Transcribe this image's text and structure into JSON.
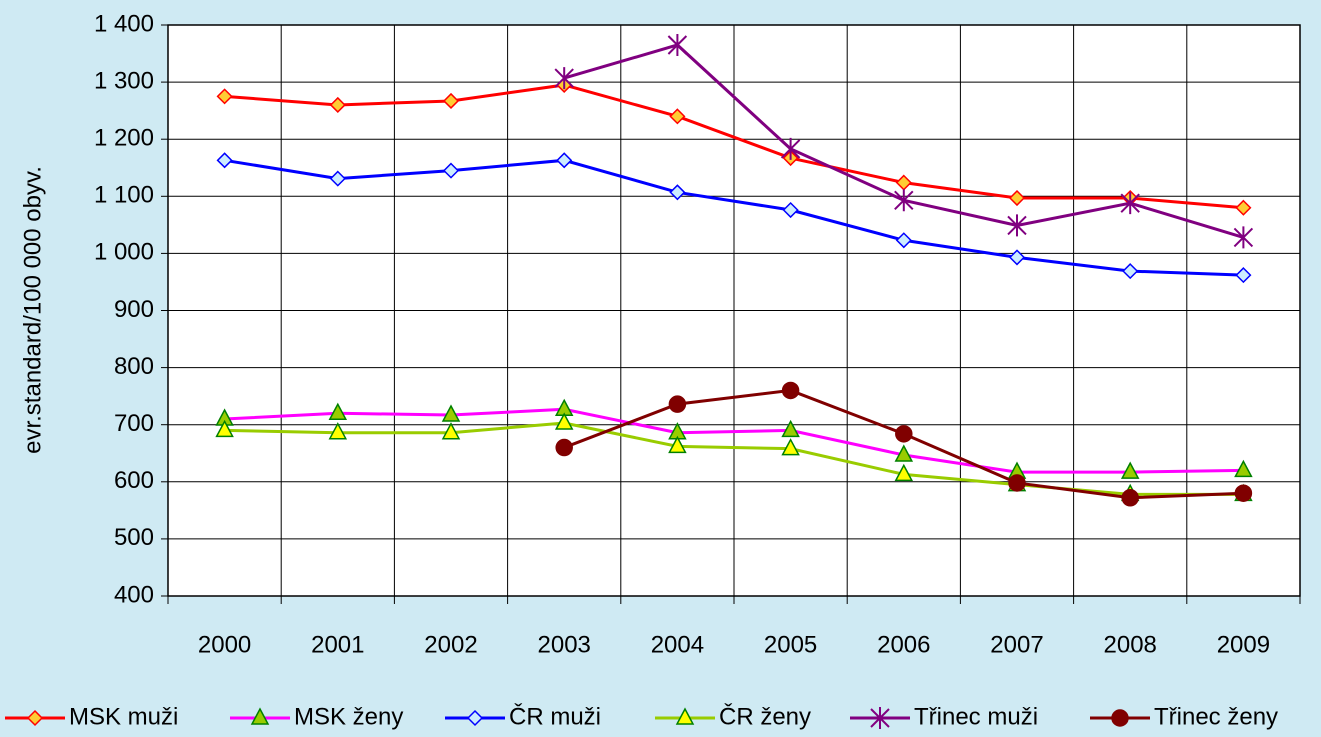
{
  "chart_data": {
    "type": "line",
    "y_label": "evr.standard/100 000 obyv.",
    "categories": [
      "2000",
      "2001",
      "2002",
      "2003",
      "2004",
      "2005",
      "2006",
      "2007",
      "2008",
      "2009"
    ],
    "ylim": [
      400,
      1400
    ],
    "yticks": [
      400,
      500,
      600,
      700,
      800,
      900,
      {
        "value": 1000,
        "label": "1 000"
      },
      {
        "value": 1100,
        "label": "1 100"
      },
      {
        "value": 1200,
        "label": "1 200"
      },
      {
        "value": 1300,
        "label": "1 300"
      },
      {
        "value": 1400,
        "label": "1 400"
      }
    ],
    "grid": true,
    "legend": "bottom",
    "series": [
      {
        "name": "MSK muži",
        "color": "#ff0000",
        "marker": "diamond",
        "marker_color": "#ffcc33",
        "values": [
          1275,
          1260,
          1267,
          1295,
          1240,
          1167,
          1124,
          1097,
          1097,
          1080
        ]
      },
      {
        "name": "MSK ženy",
        "color": "#ff00ff",
        "marker": "triangle",
        "marker_color": "#99cc00",
        "values": [
          710,
          720,
          717,
          727,
          686,
          690,
          647,
          617,
          617,
          620
        ]
      },
      {
        "name": "ČR muži",
        "color": "#0000ff",
        "marker": "diamond",
        "marker_color": "#ccecff",
        "values": [
          1163,
          1131,
          1145,
          1163,
          1107,
          1076,
          1023,
          993,
          969,
          962
        ]
      },
      {
        "name": "ČR ženy",
        "color": "#99cc00",
        "marker": "triangle",
        "marker_color": "#ffff00",
        "values": [
          690,
          686,
          686,
          703,
          662,
          658,
          613,
          595,
          578,
          578
        ]
      },
      {
        "name": "Třinec muži",
        "color": "#800080",
        "marker": "star",
        "marker_color": "#800080",
        "values": [
          null,
          null,
          null,
          1307,
          1365,
          1183,
          1093,
          1049,
          1088,
          1028
        ]
      },
      {
        "name": "Třinec ženy",
        "color": "#800000",
        "marker": "circle",
        "marker_color": "#800000",
        "values": [
          null,
          null,
          null,
          660,
          736,
          760,
          684,
          598,
          572,
          580
        ]
      }
    ]
  }
}
